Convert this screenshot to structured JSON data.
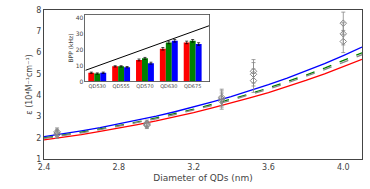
{
  "chart_data": [
    {
      "type": "line",
      "xlabel": "Diameter of QDs (nm)",
      "ylabel": "ε (10⁴M⁻¹cm⁻¹)",
      "xlim": [
        2.4,
        4.1
      ],
      "ylim": [
        1,
        8
      ],
      "xticks": [
        2.4,
        2.8,
        3.2,
        3.6,
        {
          "value": 4.0,
          "label": "4.0"
        }
      ],
      "yticks": [
        1,
        2,
        3,
        4,
        5,
        6,
        7,
        8
      ],
      "grid": false,
      "series": [
        {
          "color": "blue",
          "line_style": "solid",
          "x": [
            2.4,
            2.45,
            2.5,
            2.6,
            2.7,
            2.8,
            2.9,
            3.0,
            3.1,
            3.2,
            3.3,
            3.4,
            3.5,
            3.6,
            3.7,
            3.8,
            3.9,
            4.0,
            4.1
          ],
          "values": [
            2.05,
            2.11,
            2.18,
            2.32,
            2.47,
            2.64,
            2.82,
            3.01,
            3.22,
            3.44,
            3.68,
            3.93,
            4.2,
            4.49,
            4.8,
            5.13,
            5.48,
            5.86,
            6.26
          ]
        },
        {
          "color": "green",
          "line_style": "dashed",
          "x": [
            2.4,
            2.45,
            2.5,
            2.6,
            2.7,
            2.8,
            2.9,
            3.0,
            3.1,
            3.2,
            3.3,
            3.4,
            3.5,
            3.6,
            3.7,
            3.8,
            3.9,
            4.0,
            4.1
          ],
          "values": [
            1.99,
            2.05,
            2.12,
            2.26,
            2.41,
            2.57,
            2.74,
            2.93,
            3.13,
            3.34,
            3.57,
            3.81,
            4.06,
            4.34,
            4.63,
            4.94,
            5.27,
            5.62,
            5.99
          ]
        },
        {
          "color": "#888888",
          "line_style": "dashed",
          "x": [
            2.4,
            2.45,
            2.5,
            2.6,
            2.7,
            2.8,
            2.9,
            3.0,
            3.1,
            3.2,
            3.3,
            3.4,
            3.5,
            3.6,
            3.7,
            3.8,
            3.9,
            4.0,
            4.1
          ],
          "values": [
            1.97,
            2.03,
            2.1,
            2.23,
            2.38,
            2.54,
            2.71,
            2.89,
            3.09,
            3.3,
            3.52,
            3.76,
            4.01,
            4.28,
            4.57,
            4.87,
            5.2,
            5.54,
            5.9
          ]
        },
        {
          "color": "red",
          "line_style": "solid",
          "x": [
            2.4,
            2.45,
            2.5,
            2.6,
            2.7,
            2.8,
            2.9,
            3.0,
            3.1,
            3.2,
            3.3,
            3.4,
            3.5,
            3.6,
            3.7,
            3.8,
            3.9,
            4.0,
            4.1
          ],
          "values": [
            1.9,
            1.96,
            2.02,
            2.15,
            2.3,
            2.45,
            2.62,
            2.79,
            2.98,
            3.18,
            3.4,
            3.62,
            3.87,
            4.12,
            4.4,
            4.69,
            5.0,
            5.33,
            5.68
          ]
        },
        {
          "type": "scatter",
          "marker": "diamond",
          "color": "#888888",
          "x": [
            2.47,
            2.47,
            2.47,
            2.95,
            2.95,
            2.95,
            3.35,
            3.35,
            3.35,
            3.52,
            3.52,
            3.52,
            4.0,
            4.0,
            4.0
          ],
          "values": [
            2.15,
            2.22,
            2.28,
            2.58,
            2.62,
            2.68,
            3.72,
            3.82,
            3.9,
            4.68,
            4.98,
            5.12,
            6.52,
            6.88,
            7.38
          ],
          "error": [
            0.18,
            0.18,
            0.18,
            0.15,
            0.15,
            0.15,
            0.38,
            0.38,
            0.38,
            0.55,
            0.55,
            0.55,
            0.52,
            0.52,
            0.52
          ]
        }
      ]
    },
    {
      "type": "bar",
      "ylabel": "BPP (kHz)",
      "ylim": [
        0,
        42
      ],
      "yticks": [
        0,
        10,
        20,
        30,
        40
      ],
      "grid": false,
      "categories": [
        "QD530",
        "QD555",
        "QD570",
        "QD630",
        "QD675"
      ],
      "series": [
        {
          "color": "red",
          "values": [
            5.5,
            9.5,
            13.5,
            20.5,
            24.5
          ],
          "error": [
            0.4,
            0.4,
            0.6,
            0.8,
            0.8
          ]
        },
        {
          "color": "green",
          "values": [
            5.0,
            9.5,
            14.5,
            24.5,
            25.5
          ],
          "error": [
            0.4,
            0.4,
            0.6,
            0.8,
            0.8
          ]
        },
        {
          "color": "blue",
          "values": [
            5.5,
            9.0,
            11.5,
            25.5,
            23.5
          ],
          "error": [
            0.4,
            0.4,
            0.6,
            0.8,
            0.8
          ]
        },
        {
          "type": "line",
          "color": "black",
          "line_style": "solid",
          "x": [
            -0.5,
            4.7
          ],
          "values": [
            7,
            35
          ]
        }
      ]
    }
  ]
}
